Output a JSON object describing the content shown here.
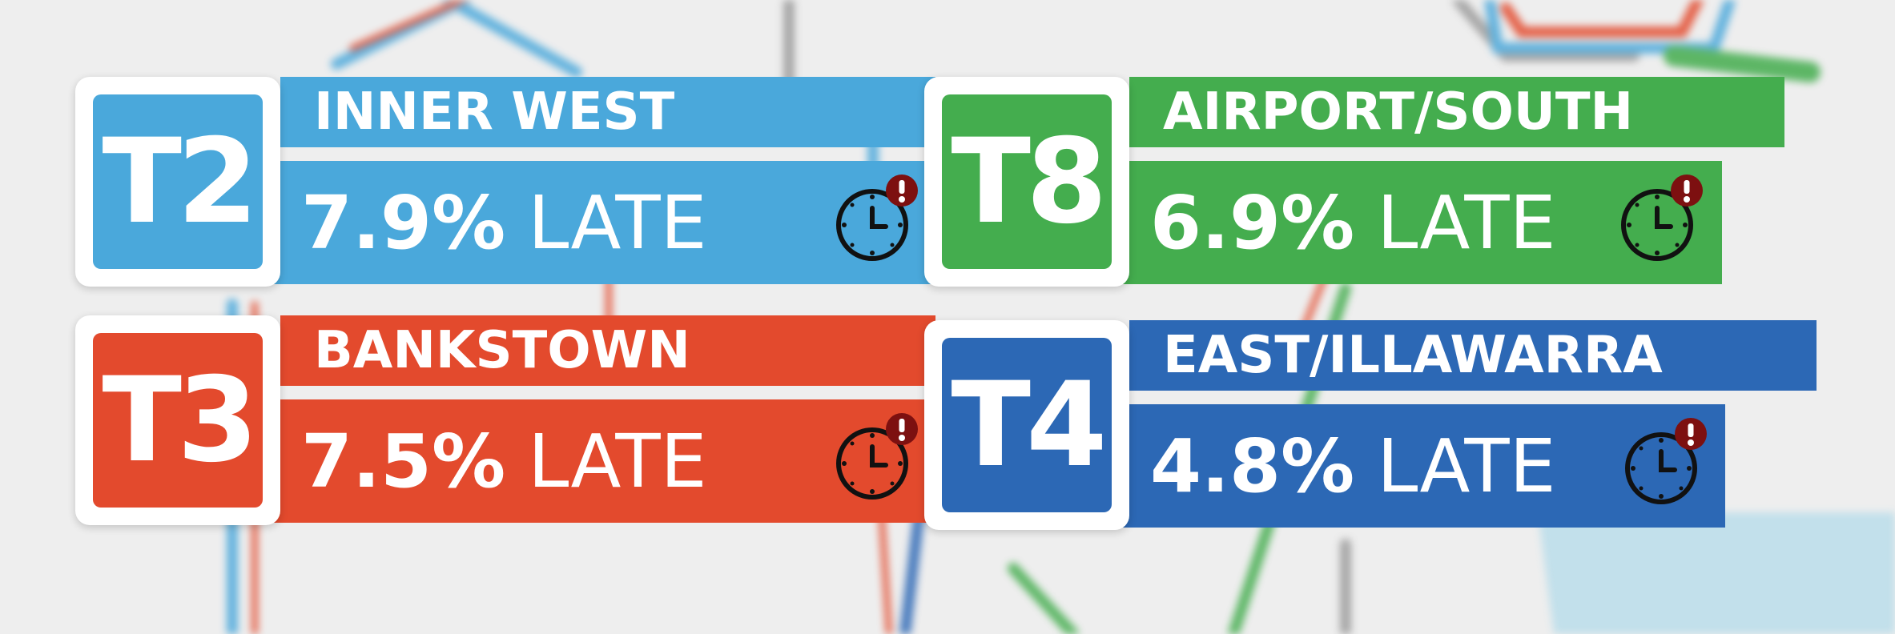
{
  "lines": [
    {
      "code": "T2",
      "name": "INNER WEST",
      "percent": "7.9%",
      "late_label": "LATE",
      "color": "#4aa8db",
      "icon": "late-clock-icon"
    },
    {
      "code": "T8",
      "name": "AIRPORT/SOUTH",
      "percent": "6.9%",
      "late_label": "LATE",
      "color": "#44ad4e",
      "icon": "late-clock-icon"
    },
    {
      "code": "T3",
      "name": "BANKSTOWN",
      "percent": "7.5%",
      "late_label": "LATE",
      "color": "#e34a2d",
      "icon": "late-clock-icon"
    },
    {
      "code": "T4",
      "name": "EAST/ILLAWARRA",
      "percent": "4.8%",
      "late_label": "LATE",
      "color": "#2c68b5",
      "icon": "late-clock-icon"
    }
  ]
}
